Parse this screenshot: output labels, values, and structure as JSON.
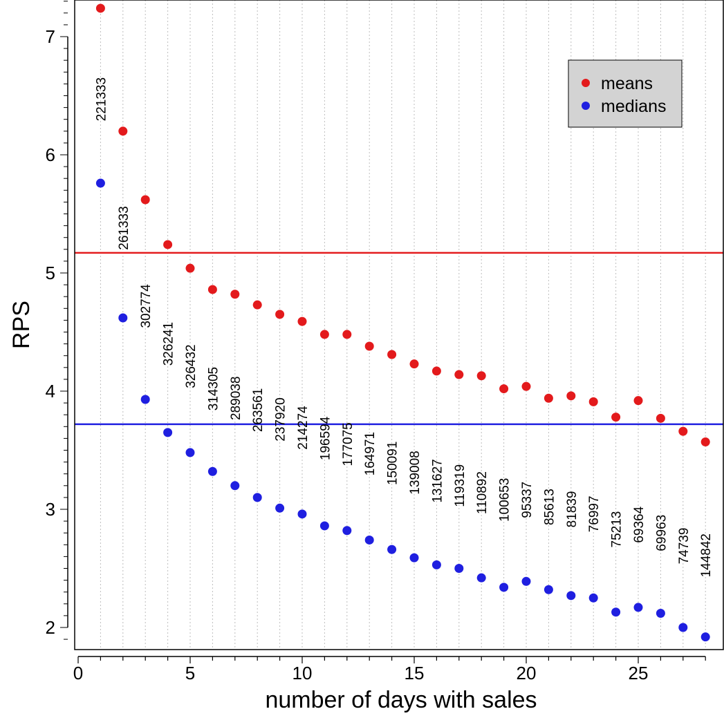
{
  "chart_data": {
    "type": "scatter",
    "title": "",
    "xlabel": "number of days with sales",
    "ylabel": "RPS",
    "xlim": [
      -0.3,
      29
    ],
    "ylim": [
      1.83,
      7.3
    ],
    "xticks": [
      0,
      5,
      10,
      15,
      20,
      25
    ],
    "yticks": [
      2,
      3,
      4,
      5,
      6,
      7
    ],
    "grid": "vertical dotted lines at each integer",
    "legend": {
      "position": "top-right",
      "background": "#d3d3d3"
    },
    "x": [
      1,
      2,
      3,
      4,
      5,
      6,
      7,
      8,
      9,
      10,
      11,
      12,
      13,
      14,
      15,
      16,
      17,
      18,
      19,
      20,
      21,
      22,
      23,
      24,
      25,
      26,
      27,
      28
    ],
    "series": [
      {
        "name": "means",
        "color": "#e31a1c",
        "values": [
          7.24,
          6.2,
          5.62,
          5.24,
          5.04,
          4.86,
          4.82,
          4.73,
          4.65,
          4.59,
          4.48,
          4.48,
          4.38,
          4.31,
          4.23,
          4.17,
          4.14,
          4.13,
          4.02,
          4.04,
          3.94,
          3.96,
          3.91,
          3.78,
          3.92,
          3.77,
          3.66,
          3.57
        ]
      },
      {
        "name": "medians",
        "color": "#1f1fe0",
        "values": [
          5.76,
          4.62,
          3.93,
          3.65,
          3.48,
          3.32,
          3.2,
          3.1,
          3.01,
          2.96,
          2.86,
          2.82,
          2.74,
          2.66,
          2.59,
          2.53,
          2.5,
          2.42,
          2.34,
          2.39,
          2.32,
          2.27,
          2.25,
          2.13,
          2.17,
          2.12,
          2.0,
          1.92
        ]
      }
    ],
    "hlines": [
      {
        "y": 5.17,
        "color": "#e31a1c"
      },
      {
        "y": 3.72,
        "color": "#1f1fe0"
      }
    ],
    "annotations": [
      {
        "x": 1,
        "y": 6.47,
        "text": "221333"
      },
      {
        "x": 2,
        "y": 5.38,
        "text": "261333"
      },
      {
        "x": 3,
        "y": 4.72,
        "text": "302774"
      },
      {
        "x": 4,
        "y": 4.4,
        "text": "326241"
      },
      {
        "x": 5,
        "y": 4.21,
        "text": "326432"
      },
      {
        "x": 6,
        "y": 4.02,
        "text": "314305"
      },
      {
        "x": 7,
        "y": 3.94,
        "text": "289038"
      },
      {
        "x": 8,
        "y": 3.84,
        "text": "263561"
      },
      {
        "x": 9,
        "y": 3.76,
        "text": "237920"
      },
      {
        "x": 10,
        "y": 3.69,
        "text": "214274"
      },
      {
        "x": 11,
        "y": 3.6,
        "text": "196594"
      },
      {
        "x": 12,
        "y": 3.55,
        "text": "177075"
      },
      {
        "x": 13,
        "y": 3.47,
        "text": "164971"
      },
      {
        "x": 14,
        "y": 3.39,
        "text": "150091"
      },
      {
        "x": 15,
        "y": 3.31,
        "text": "139008"
      },
      {
        "x": 16,
        "y": 3.24,
        "text": "131627"
      },
      {
        "x": 17,
        "y": 3.2,
        "text": "119319"
      },
      {
        "x": 18,
        "y": 3.14,
        "text": "110892"
      },
      {
        "x": 19,
        "y": 3.08,
        "text": "100653"
      },
      {
        "x": 20,
        "y": 3.08,
        "text": "95337"
      },
      {
        "x": 21,
        "y": 3.02,
        "text": "85613"
      },
      {
        "x": 22,
        "y": 3.0,
        "text": "81839"
      },
      {
        "x": 23,
        "y": 2.96,
        "text": "76997"
      },
      {
        "x": 24,
        "y": 2.83,
        "text": "75213"
      },
      {
        "x": 25,
        "y": 2.87,
        "text": "69364"
      },
      {
        "x": 26,
        "y": 2.8,
        "text": "69963"
      },
      {
        "x": 27,
        "y": 2.69,
        "text": "74739"
      },
      {
        "x": 28,
        "y": 2.61,
        "text": "144842"
      }
    ]
  }
}
